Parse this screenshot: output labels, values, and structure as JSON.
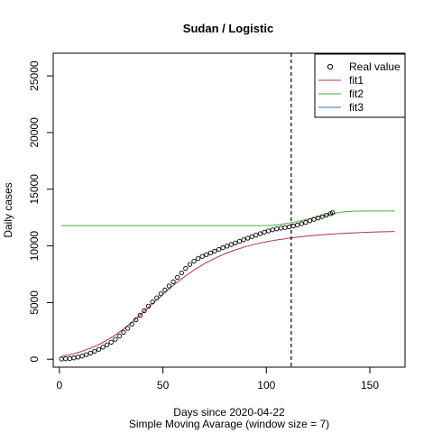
{
  "chart_data": {
    "type": "line",
    "title": "Sudan / Logistic",
    "xlabel": "Days since 2020-04-22",
    "subtitle": "Simple Moving Avarage (window size = 7)",
    "ylabel": "Daily cases",
    "xlim": [
      -3,
      167
    ],
    "ylim": [
      -700,
      27000
    ],
    "x_ticks": [
      0,
      50,
      100,
      150
    ],
    "y_ticks": [
      0,
      5000,
      10000,
      15000,
      20000,
      25000
    ],
    "vline_x": 112,
    "legend": {
      "position": "top-right",
      "entries": [
        {
          "name": "Real value",
          "kind": "point",
          "color": "#000000"
        },
        {
          "name": "fit1",
          "kind": "line",
          "color": "#b03060"
        },
        {
          "name": "fit2",
          "kind": "line",
          "color": "#4caf2f"
        },
        {
          "name": "fit3",
          "kind": "line",
          "color": "#2c6fb5"
        }
      ]
    },
    "series": [
      {
        "name": "Real value",
        "style": "points",
        "x": [
          1,
          3,
          5,
          7,
          9,
          11,
          13,
          15,
          17,
          19,
          21,
          23,
          25,
          27,
          29,
          31,
          33,
          35,
          37,
          39,
          41,
          43,
          45,
          47,
          49,
          51,
          53,
          55,
          57,
          59,
          61,
          63,
          65,
          67,
          69,
          71,
          73,
          75,
          77,
          79,
          81,
          83,
          85,
          87,
          89,
          91,
          93,
          95,
          97,
          99,
          101,
          103,
          105,
          107,
          109,
          111,
          113,
          115,
          117,
          119,
          121,
          123,
          125,
          127,
          129,
          131,
          132
        ],
        "y": [
          20,
          40,
          70,
          120,
          190,
          280,
          400,
          540,
          700,
          870,
          1060,
          1270,
          1500,
          1760,
          2050,
          2370,
          2720,
          3090,
          3480,
          3880,
          4280,
          4680,
          5060,
          5420,
          5770,
          6110,
          6460,
          6830,
          7220,
          7620,
          8010,
          8360,
          8650,
          8880,
          9070,
          9230,
          9390,
          9540,
          9690,
          9840,
          9980,
          10120,
          10260,
          10400,
          10540,
          10680,
          10820,
          10950,
          11080,
          11210,
          11320,
          11420,
          11500,
          11570,
          11620,
          11680,
          11760,
          11850,
          11960,
          12080,
          12210,
          12340,
          12460,
          12580,
          12710,
          12840,
          12930
        ]
      },
      {
        "name": "fit1",
        "style": "line",
        "color": "#b03060",
        "x": [
          1,
          5,
          10,
          15,
          20,
          25,
          30,
          35,
          40,
          45,
          50,
          55,
          60,
          65,
          70,
          75,
          80,
          85,
          90,
          95,
          100,
          105,
          110,
          115,
          120,
          125,
          130,
          135,
          140,
          145,
          150,
          155,
          162
        ],
        "y": [
          250,
          400,
          640,
          970,
          1380,
          1900,
          2530,
          3260,
          4060,
          4890,
          5720,
          6510,
          7220,
          7860,
          8420,
          8900,
          9310,
          9650,
          9930,
          10170,
          10360,
          10520,
          10650,
          10770,
          10870,
          10950,
          11020,
          11080,
          11130,
          11170,
          11210,
          11240,
          11270
        ]
      },
      {
        "name": "fit2",
        "style": "line",
        "color": "#4caf2f",
        "x": [
          1,
          10,
          20,
          30,
          40,
          50,
          60,
          70,
          80,
          90,
          100,
          103,
          106,
          109,
          112,
          115,
          118,
          121,
          124,
          127,
          130,
          133,
          136,
          139,
          142,
          145,
          150,
          155,
          162
        ],
        "y": [
          11790,
          11790,
          11790,
          11790,
          11790,
          11790,
          11790,
          11790,
          11790,
          11790,
          11790,
          11820,
          11880,
          11960,
          12050,
          12160,
          12280,
          12400,
          12520,
          12640,
          12760,
          12880,
          12970,
          13030,
          13060,
          13070,
          13080,
          13080,
          13080
        ]
      },
      {
        "name": "fit3",
        "style": "line",
        "color": "#2c6fb5",
        "x": [],
        "y": []
      }
    ]
  }
}
